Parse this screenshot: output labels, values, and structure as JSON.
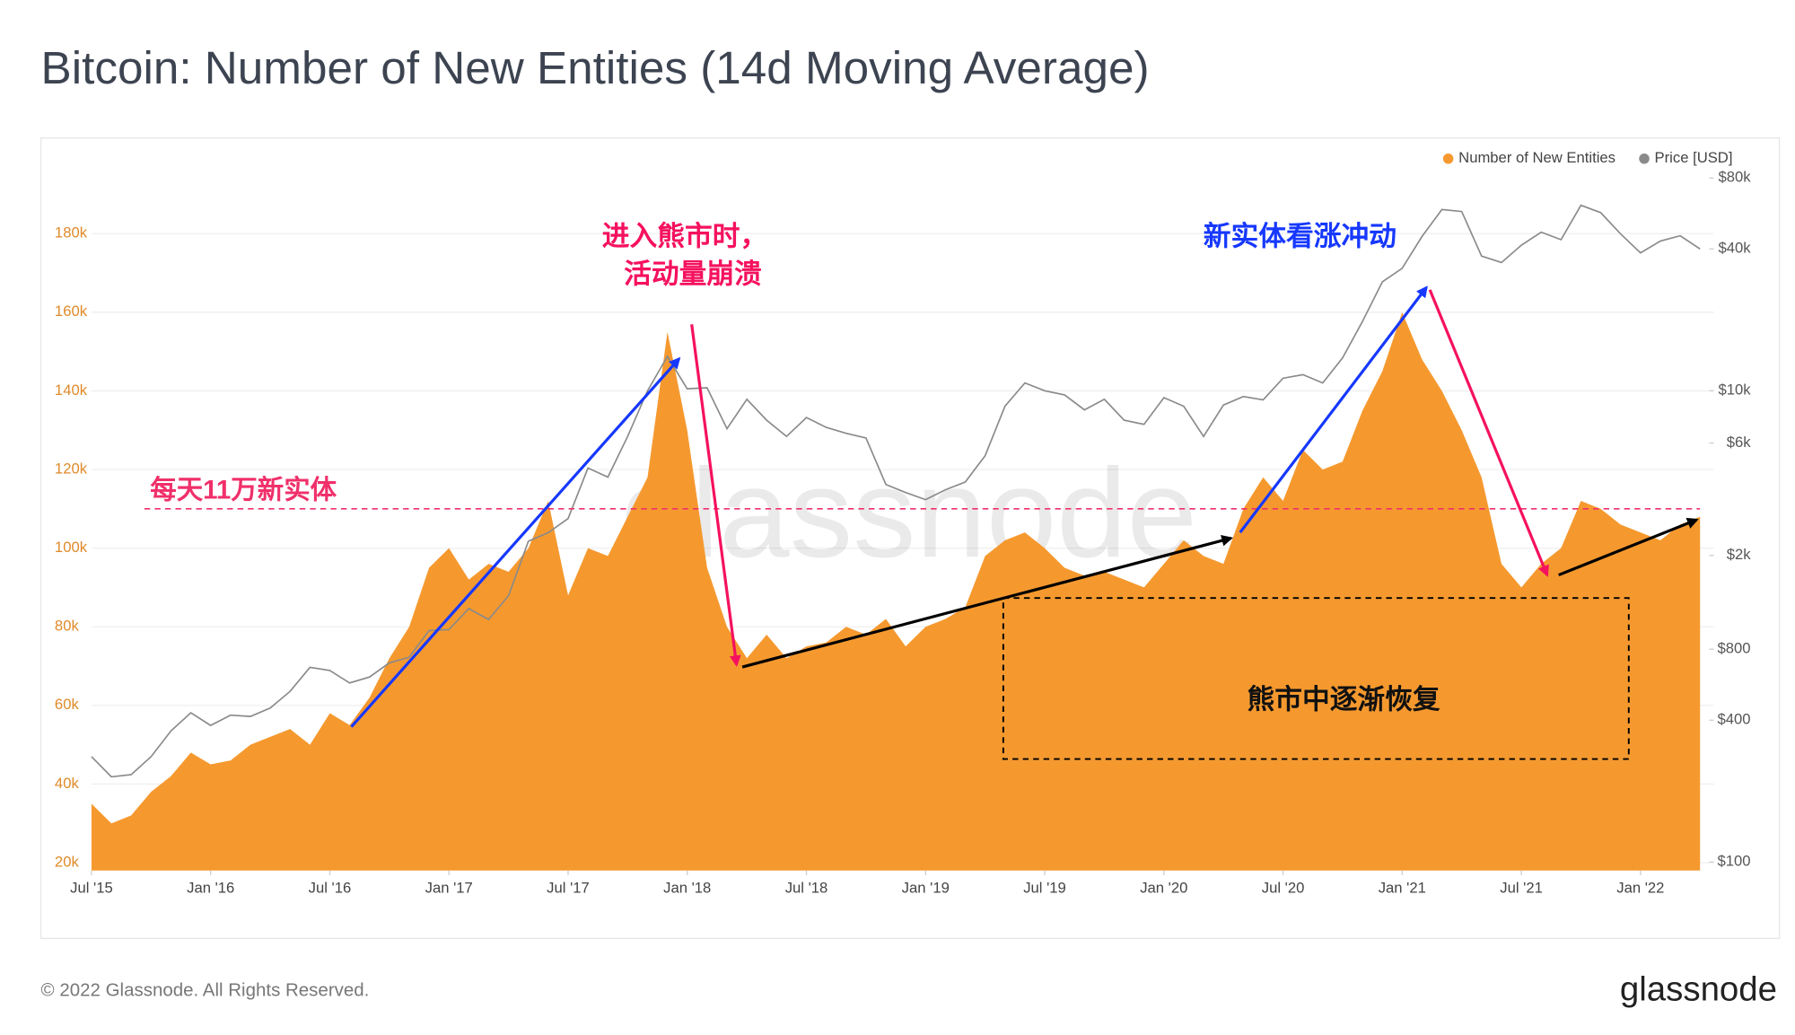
{
  "title": "Bitcoin: Number of New Entities (14d Moving Average)",
  "footer": {
    "copyright": "© 2022 Glassnode. All Rights Reserved.",
    "logo": "glassnode"
  },
  "chart_data": {
    "type": "area",
    "watermark": "glassnode",
    "x": [
      "2015-07",
      "2015-08",
      "2015-09",
      "2015-10",
      "2015-11",
      "2015-12",
      "2016-01",
      "2016-02",
      "2016-03",
      "2016-04",
      "2016-05",
      "2016-06",
      "2016-07",
      "2016-08",
      "2016-09",
      "2016-10",
      "2016-11",
      "2016-12",
      "2017-01",
      "2017-02",
      "2017-03",
      "2017-04",
      "2017-05",
      "2017-06",
      "2017-07",
      "2017-08",
      "2017-09",
      "2017-10",
      "2017-11",
      "2017-12",
      "2018-01",
      "2018-02",
      "2018-03",
      "2018-04",
      "2018-05",
      "2018-06",
      "2018-07",
      "2018-08",
      "2018-09",
      "2018-10",
      "2018-11",
      "2018-12",
      "2019-01",
      "2019-02",
      "2019-03",
      "2019-04",
      "2019-05",
      "2019-06",
      "2019-07",
      "2019-08",
      "2019-09",
      "2019-10",
      "2019-11",
      "2019-12",
      "2020-01",
      "2020-02",
      "2020-03",
      "2020-04",
      "2020-05",
      "2020-06",
      "2020-07",
      "2020-08",
      "2020-09",
      "2020-10",
      "2020-11",
      "2020-12",
      "2021-01",
      "2021-02",
      "2021-03",
      "2021-04",
      "2021-05",
      "2021-06",
      "2021-07",
      "2021-08",
      "2021-09",
      "2021-10",
      "2021-11",
      "2021-12",
      "2022-01",
      "2022-02",
      "2022-03",
      "2022-04"
    ],
    "series": [
      {
        "name": "Number of New Entities",
        "color": "#f5992f",
        "axis": "y",
        "values": [
          35000,
          30000,
          32000,
          38000,
          42000,
          48000,
          45000,
          46000,
          50000,
          52000,
          54000,
          50000,
          58000,
          55000,
          62000,
          72000,
          80000,
          95000,
          100000,
          92000,
          96000,
          94000,
          100000,
          112000,
          88000,
          100000,
          98000,
          108000,
          118000,
          155000,
          130000,
          95000,
          80000,
          72000,
          78000,
          72000,
          75000,
          76000,
          80000,
          78000,
          82000,
          75000,
          80000,
          82000,
          85000,
          98000,
          102000,
          104000,
          100000,
          95000,
          93000,
          94000,
          92000,
          90000,
          96000,
          102000,
          98000,
          96000,
          110000,
          118000,
          112000,
          125000,
          120000,
          122000,
          135000,
          145000,
          160000,
          148000,
          140000,
          130000,
          118000,
          96000,
          90000,
          96000,
          100000,
          112000,
          110000,
          106000,
          104000,
          102000,
          106000,
          108000
        ]
      },
      {
        "name": "Price [USD]",
        "color": "#8a8a8a",
        "axis": "y2",
        "values": [
          280,
          230,
          235,
          280,
          360,
          430,
          380,
          420,
          415,
          450,
          530,
          670,
          650,
          575,
          610,
          700,
          740,
          960,
          970,
          1190,
          1070,
          1350,
          2300,
          2500,
          2870,
          4700,
          4300,
          6400,
          10000,
          14000,
          10200,
          10300,
          6900,
          9200,
          7500,
          6400,
          7700,
          7000,
          6600,
          6300,
          4000,
          3700,
          3450,
          3800,
          4100,
          5300,
          8600,
          10800,
          10000,
          9600,
          8300,
          9200,
          7500,
          7200,
          9350,
          8600,
          6400,
          8700,
          9450,
          9150,
          11300,
          11700,
          10800,
          13800,
          19700,
          29000,
          33100,
          45200,
          58800,
          57700,
          37300,
          35000,
          41500,
          47100,
          43800,
          61300,
          57000,
          46300,
          38500,
          43200,
          45500,
          40000
        ]
      }
    ],
    "xlim": [
      "2015-07",
      "2022-04"
    ],
    "xticks": [
      {
        "value": "2015-07",
        "label": "Jul '15"
      },
      {
        "value": "2016-01",
        "label": "Jan '16"
      },
      {
        "value": "2016-07",
        "label": "Jul '16"
      },
      {
        "value": "2017-01",
        "label": "Jan '17"
      },
      {
        "value": "2017-07",
        "label": "Jul '17"
      },
      {
        "value": "2018-01",
        "label": "Jan '18"
      },
      {
        "value": "2018-07",
        "label": "Jul '18"
      },
      {
        "value": "2019-01",
        "label": "Jan '19"
      },
      {
        "value": "2019-07",
        "label": "Jul '19"
      },
      {
        "value": "2020-01",
        "label": "Jan '20"
      },
      {
        "value": "2020-07",
        "label": "Jul '20"
      },
      {
        "value": "2021-01",
        "label": "Jan '21"
      },
      {
        "value": "2021-07",
        "label": "Jul '21"
      },
      {
        "value": "2022-01",
        "label": "Jan '22"
      }
    ],
    "ylim": [
      18000,
      197000
    ],
    "yticks": [
      {
        "value": 20000,
        "label": "20k"
      },
      {
        "value": 40000,
        "label": "40k"
      },
      {
        "value": 60000,
        "label": "60k"
      },
      {
        "value": 80000,
        "label": "80k"
      },
      {
        "value": 100000,
        "label": "100k"
      },
      {
        "value": 120000,
        "label": "120k"
      },
      {
        "value": 140000,
        "label": "140k"
      },
      {
        "value": 160000,
        "label": "160k"
      },
      {
        "value": 180000,
        "label": "180k"
      }
    ],
    "y2lim": [
      92,
      89300
    ],
    "y2log": true,
    "y2ticks": [
      {
        "value": 100,
        "label": "$100"
      },
      {
        "value": 400,
        "label": "$400"
      },
      {
        "value": 800,
        "label": "$800"
      },
      {
        "value": 2000,
        "label": "$2k"
      },
      {
        "value": 6000,
        "label": "$6k"
      },
      {
        "value": 10000,
        "label": "$10k"
      },
      {
        "value": 40000,
        "label": "$40k"
      },
      {
        "value": 80000,
        "label": "$80k"
      }
    ],
    "grid": true,
    "legend": "top-right",
    "reference_line": {
      "value": 110000,
      "label": "每天11万新实体",
      "color": "#f0306a"
    },
    "annotations": [
      {
        "text": "进入熊市时，",
        "color": "#f5115f"
      },
      {
        "text": "活动量崩溃",
        "color": "#f5115f"
      },
      {
        "text": "新实体看涨冲动",
        "color": "#1638ff"
      },
      {
        "text": "熊市中逐渐恢复",
        "color": "#111111"
      }
    ]
  }
}
